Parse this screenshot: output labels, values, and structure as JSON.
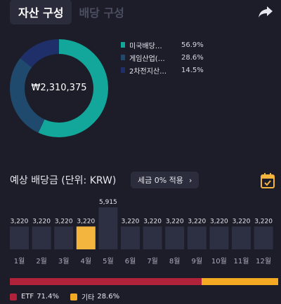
{
  "tabs": [
    {
      "label": "자산 구성",
      "active": true
    },
    {
      "label": "배당 구성",
      "active": false
    }
  ],
  "composition": {
    "total": "₩2,310,375",
    "items": [
      {
        "name": "미국배당…",
        "pct": "56.9%",
        "value": 56.9,
        "color": "#12a79a"
      },
      {
        "name": "게임산업(…",
        "pct": "28.6%",
        "value": 28.6,
        "color": "#1f4a6e"
      },
      {
        "name": "2차전지산…",
        "pct": "14.5%",
        "value": 14.5,
        "color": "#1f2f6a"
      }
    ]
  },
  "dividend": {
    "title": "예상 배당금 (단위: KRW)",
    "tax_button": "세금 0% 적용",
    "chevron": "›"
  },
  "chart_data": {
    "type": "bar",
    "categories": [
      "1월",
      "2월",
      "3월",
      "4월",
      "5월",
      "6월",
      "7월",
      "8월",
      "9월",
      "10월",
      "11월",
      "12월"
    ],
    "values": [
      3220,
      3220,
      3220,
      3220,
      5915,
      3220,
      3220,
      3220,
      3220,
      3220,
      3220,
      3220
    ],
    "value_labels": [
      "3,220",
      "3,220",
      "3,220",
      "3,220",
      "5,915",
      "3,220",
      "3,220",
      "3,220",
      "3,220",
      "3,220",
      "3,220",
      "3,220"
    ],
    "highlight_index": 3,
    "colors": {
      "bar": "#2d3042",
      "highlight": "#f4b53e"
    }
  },
  "breakdown": [
    {
      "name": "ETF",
      "pct": "71.4%",
      "value": 71.4,
      "color": "#b0213a"
    },
    {
      "name": "기타",
      "pct": "28.6%",
      "value": 28.6,
      "color": "#f4a923"
    }
  ]
}
